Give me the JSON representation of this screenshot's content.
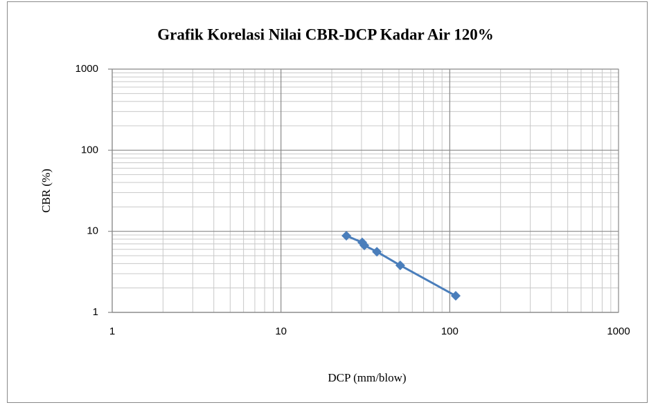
{
  "chart_data": {
    "type": "scatter-line",
    "title": "Grafik Korelasi Nilai CBR-DCP Kadar Air 120%",
    "x_label": "DCP (mm/blow)",
    "y_label": "CBR  (%)",
    "x": [
      24.4,
      30.3,
      31.2,
      37.0,
      50.9,
      108.5
    ],
    "series": [
      {
        "color": "#4a7ebb",
        "values": [
          8.8,
          7.3,
          6.7,
          5.6,
          3.8,
          1.6
        ]
      }
    ],
    "xlim": [
      1,
      1000
    ],
    "ylim": [
      1,
      1000
    ],
    "xticks": [
      1,
      10,
      100,
      1000
    ],
    "yticks": [
      1,
      10,
      100,
      1000
    ],
    "xscale": "log",
    "yscale": "log",
    "grid": true,
    "minor_grid": true
  }
}
